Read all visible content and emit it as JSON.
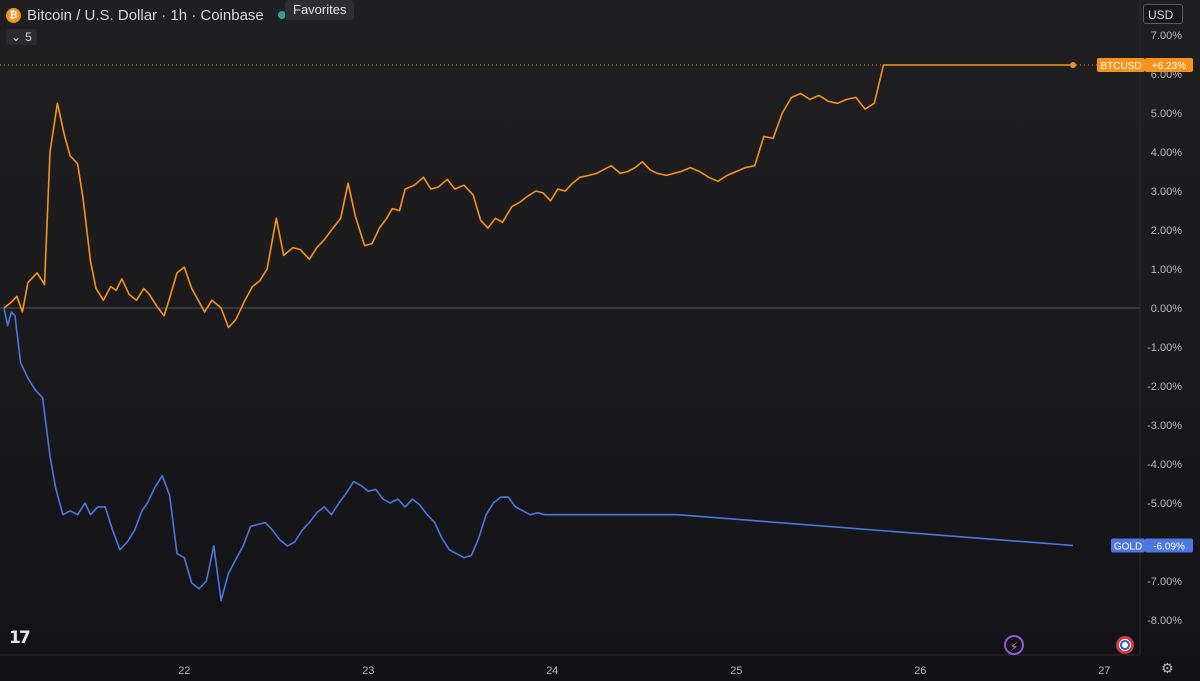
{
  "header": {
    "symbol_title": "Bitcoin / U.S. Dollar · 1h · Coinbase",
    "tooltip": "Favorites",
    "interval_count": "5",
    "currency": "USD"
  },
  "icons": [
    "bitcoin-logo-icon",
    "market-open-dot-icon",
    "chevron-down-icon",
    "tradingview-logo-icon",
    "lightning-icon",
    "us-flag-icon",
    "gear-icon"
  ],
  "colors": {
    "btc": "#f7931a",
    "gold": "#4a78e0",
    "zero_line": "#55555a"
  },
  "chart_data": {
    "type": "line",
    "xlabel": "",
    "ylabel": "",
    "x_ticks": [
      {
        "label": "22",
        "value": 22
      },
      {
        "label": "23",
        "value": 23
      },
      {
        "label": "24",
        "value": 24
      },
      {
        "label": "25",
        "value": 25
      },
      {
        "label": "26",
        "value": 26
      },
      {
        "label": "27",
        "value": 27
      }
    ],
    "y_ticks": [
      "7.00%",
      "6.00%",
      "5.00%",
      "4.00%",
      "3.00%",
      "2.00%",
      "1.00%",
      "0.00%",
      "-1.00%",
      "-2.00%",
      "-3.00%",
      "-4.00%",
      "-5.00%",
      "-6.00%",
      "-7.00%",
      "-8.00%"
    ],
    "ylim": [
      -8.4,
      7.3
    ],
    "xlim": [
      21.02,
      27.1
    ],
    "grid": false,
    "series": [
      {
        "name": "BTCUSD",
        "label": "+6.23%",
        "color": "#f7931a",
        "x": [
          21.02,
          21.06,
          21.09,
          21.12,
          21.15,
          21.2,
          21.24,
          21.27,
          21.31,
          21.35,
          21.38,
          21.42,
          21.45,
          21.49,
          21.52,
          21.56,
          21.6,
          21.63,
          21.66,
          21.7,
          21.74,
          21.78,
          21.81,
          21.85,
          21.89,
          21.92,
          21.96,
          22.0,
          22.04,
          22.07,
          22.11,
          22.15,
          22.2,
          22.24,
          22.28,
          22.33,
          22.37,
          22.41,
          22.45,
          22.5,
          22.54,
          22.59,
          22.63,
          22.68,
          22.72,
          22.76,
          22.8,
          22.85,
          22.89,
          22.93,
          22.98,
          23.02,
          23.06,
          23.1,
          23.13,
          23.17,
          23.2,
          23.25,
          23.3,
          23.34,
          23.38,
          23.43,
          23.47,
          23.52,
          23.57,
          23.61,
          23.65,
          23.69,
          23.73,
          23.78,
          23.82,
          23.86,
          23.91,
          23.95,
          23.99,
          24.03,
          24.07,
          24.11,
          24.15,
          24.2,
          24.24,
          24.28,
          24.32,
          24.37,
          24.41,
          24.45,
          24.49,
          24.53,
          24.57,
          24.62,
          24.66,
          24.7,
          24.75,
          24.8,
          24.85,
          24.9,
          24.95,
          25.0,
          25.05,
          25.1,
          25.15,
          25.2,
          25.25,
          25.3,
          25.35,
          25.4,
          25.45,
          25.5,
          25.55,
          25.6,
          25.65,
          25.7,
          25.75,
          25.8,
          25.85,
          25.9,
          25.95,
          26.0,
          26.05,
          26.1,
          26.15,
          26.2,
          26.25,
          26.3,
          26.35,
          26.4,
          26.45,
          26.5,
          26.55,
          26.6,
          26.65,
          26.7,
          26.75,
          26.8,
          26.83
        ],
        "y": [
          0.0,
          0.15,
          0.3,
          -0.1,
          0.65,
          0.9,
          0.6,
          4.0,
          5.25,
          4.4,
          3.9,
          3.7,
          2.8,
          1.2,
          0.5,
          0.2,
          0.55,
          0.45,
          0.75,
          0.35,
          0.2,
          0.5,
          0.35,
          0.05,
          -0.2,
          0.25,
          0.9,
          1.05,
          0.5,
          0.25,
          -0.1,
          0.2,
          0.0,
          -0.5,
          -0.3,
          0.2,
          0.55,
          0.7,
          1.0,
          2.3,
          1.35,
          1.55,
          1.5,
          1.25,
          1.55,
          1.75,
          2.0,
          2.3,
          3.2,
          2.35,
          1.6,
          1.65,
          2.05,
          2.3,
          2.55,
          2.5,
          3.05,
          3.15,
          3.35,
          3.05,
          3.1,
          3.3,
          3.05,
          3.15,
          2.9,
          2.25,
          2.05,
          2.3,
          2.2,
          2.6,
          2.7,
          2.85,
          3.0,
          2.95,
          2.75,
          3.05,
          3.0,
          3.2,
          3.35,
          3.4,
          3.45,
          3.55,
          3.65,
          3.45,
          3.5,
          3.6,
          3.75,
          3.55,
          3.45,
          3.4,
          3.45,
          3.5,
          3.6,
          3.5,
          3.35,
          3.25,
          3.4,
          3.5,
          3.6,
          3.65,
          4.4,
          4.35,
          5.0,
          5.4,
          5.5,
          5.35,
          5.45,
          5.3,
          5.25,
          5.35,
          5.4,
          5.1,
          5.25,
          6.23,
          6.23,
          6.23,
          6.23,
          6.23,
          6.23,
          6.23,
          6.23,
          6.23,
          6.23,
          6.23,
          6.23,
          6.23,
          6.23,
          6.23,
          6.23,
          6.23,
          6.23,
          6.23,
          6.23,
          6.23,
          6.23
        ]
      },
      {
        "name": "GOLD",
        "label": "-6.09%",
        "color": "#4a78e0",
        "x": [
          21.02,
          21.04,
          21.06,
          21.08,
          21.11,
          21.15,
          21.19,
          21.23,
          21.27,
          21.3,
          21.34,
          21.38,
          21.42,
          21.46,
          21.49,
          21.53,
          21.57,
          21.61,
          21.65,
          21.69,
          21.73,
          21.77,
          21.8,
          21.84,
          21.88,
          21.92,
          21.96,
          22.0,
          22.04,
          22.08,
          22.12,
          22.16,
          22.2,
          22.24,
          22.28,
          22.32,
          22.36,
          22.4,
          22.44,
          22.48,
          22.52,
          22.56,
          22.6,
          22.64,
          22.68,
          22.72,
          22.76,
          22.8,
          22.84,
          22.88,
          22.92,
          22.96,
          23.0,
          23.04,
          23.08,
          23.12,
          23.16,
          23.2,
          23.24,
          23.28,
          23.32,
          23.36,
          23.4,
          23.44,
          23.48,
          23.52,
          23.56,
          23.6,
          23.64,
          23.68,
          23.72,
          23.76,
          23.8,
          23.84,
          23.88,
          23.92,
          23.96,
          24.0,
          24.04,
          24.08,
          24.12,
          24.16,
          24.2,
          24.24,
          24.28,
          24.32,
          24.36,
          24.4,
          24.44,
          24.48,
          24.52,
          24.56,
          24.6,
          24.64,
          24.68,
          26.83
        ],
        "y": [
          0.0,
          -0.45,
          -0.1,
          -0.2,
          -1.4,
          -1.8,
          -2.1,
          -2.3,
          -3.8,
          -4.6,
          -5.3,
          -5.2,
          -5.3,
          -5.0,
          -5.3,
          -5.1,
          -5.1,
          -5.7,
          -6.2,
          -6.0,
          -5.7,
          -5.2,
          -5.0,
          -4.6,
          -4.3,
          -4.8,
          -6.3,
          -6.4,
          -7.05,
          -7.2,
          -7.0,
          -6.1,
          -7.5,
          -6.8,
          -6.45,
          -6.1,
          -5.6,
          -5.55,
          -5.5,
          -5.7,
          -5.95,
          -6.1,
          -6.0,
          -5.7,
          -5.5,
          -5.25,
          -5.1,
          -5.3,
          -5.0,
          -4.75,
          -4.45,
          -4.55,
          -4.7,
          -4.65,
          -4.9,
          -5.0,
          -4.9,
          -5.1,
          -4.9,
          -5.05,
          -5.3,
          -5.5,
          -5.9,
          -6.2,
          -6.3,
          -6.4,
          -6.35,
          -5.9,
          -5.3,
          -5.0,
          -4.85,
          -4.85,
          -5.1,
          -5.2,
          -5.3,
          -5.25,
          -5.3,
          -5.3,
          -5.3,
          -5.3,
          -5.3,
          -5.3,
          -5.3,
          -5.3,
          -5.3,
          -5.3,
          -5.3,
          -5.3,
          -5.3,
          -5.3,
          -5.3,
          -5.3,
          -5.3,
          -5.3,
          -5.3,
          -6.09
        ]
      }
    ]
  }
}
